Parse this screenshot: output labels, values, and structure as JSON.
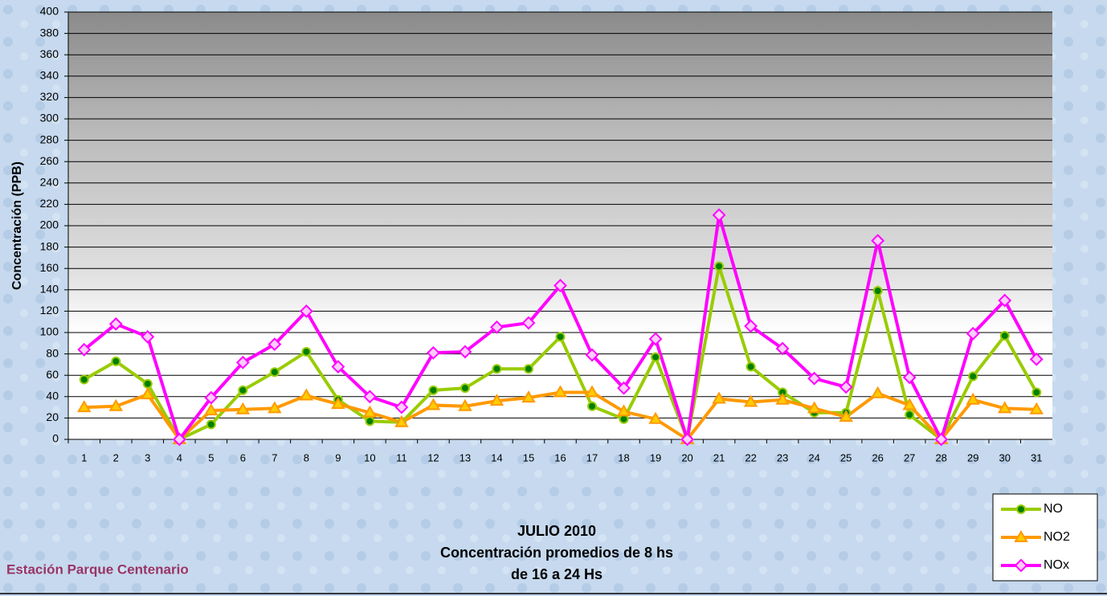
{
  "chart_data": {
    "type": "line",
    "title_lines": [
      "JULIO 2010",
      "Concentración promedios de 8 hs",
      "de 16 a 24 Hs"
    ],
    "ylabel": "Concentración  (PPB)",
    "footer": "Estación Parque Centenario",
    "categories": [
      "1",
      "2",
      "3",
      "4",
      "5",
      "6",
      "7",
      "8",
      "9",
      "10",
      "11",
      "12",
      "13",
      "14",
      "15",
      "16",
      "17",
      "18",
      "19",
      "20",
      "21",
      "22",
      "23",
      "24",
      "25",
      "26",
      "27",
      "28",
      "29",
      "30",
      "31"
    ],
    "series": [
      {
        "name": "NO",
        "color": "#99cc00",
        "marker": "circle",
        "marker_color": "#008000",
        "values": [
          56,
          73,
          52,
          0,
          14,
          46,
          63,
          82,
          37,
          17,
          16,
          46,
          48,
          66,
          66,
          96,
          31,
          19,
          77,
          0,
          162,
          68,
          44,
          25,
          25,
          139,
          23,
          0,
          59,
          97,
          44
        ]
      },
      {
        "name": "NO2",
        "color": "#ff9900",
        "marker": "triangle",
        "marker_color": "#ffcc00",
        "values": [
          30,
          31,
          42,
          0,
          27,
          28,
          29,
          41,
          33,
          25,
          16,
          32,
          31,
          36,
          39,
          44,
          44,
          26,
          19,
          0,
          38,
          35,
          37,
          29,
          21,
          43,
          32,
          0,
          37,
          29,
          28
        ]
      },
      {
        "name": "NOx",
        "color": "#ff00ff",
        "marker": "diamond",
        "marker_color": "#ffccff",
        "values": [
          84,
          108,
          96,
          0,
          39,
          72,
          89,
          120,
          68,
          40,
          30,
          81,
          82,
          105,
          109,
          144,
          79,
          48,
          94,
          0,
          210,
          106,
          85,
          57,
          49,
          186,
          58,
          0,
          99,
          130,
          75
        ]
      }
    ],
    "ylim": [
      0,
      400
    ],
    "yticks": [
      0,
      20,
      40,
      60,
      80,
      100,
      120,
      140,
      160,
      180,
      200,
      220,
      240,
      260,
      280,
      300,
      320,
      340,
      360,
      380,
      400
    ],
    "grid": true,
    "legend": "bottom-right"
  }
}
